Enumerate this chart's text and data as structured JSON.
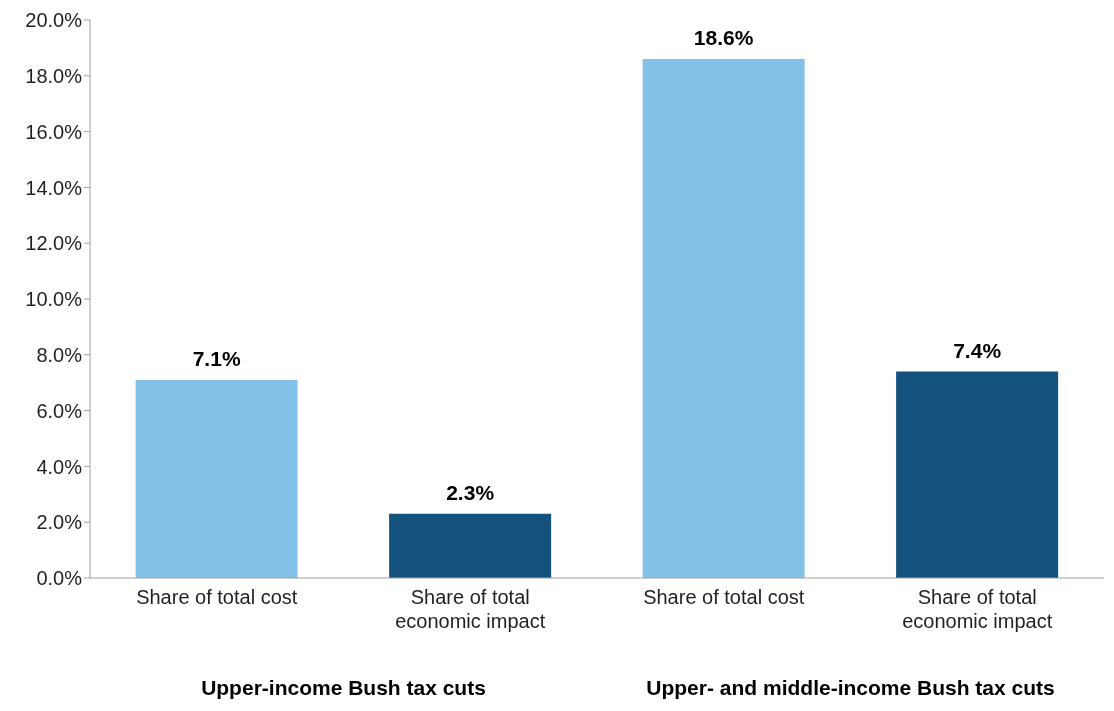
{
  "chart_data": {
    "type": "bar",
    "categories": [
      "Share of total cost",
      "Share of total economic impact",
      "Share of total cost",
      "Share of total economic impact"
    ],
    "values": [
      7.1,
      2.3,
      18.6,
      7.4
    ],
    "colors": [
      "#83c1e8",
      "#14517c",
      "#83c1e8",
      "#14517c"
    ],
    "value_labels": [
      "7.1%",
      "2.3%",
      "18.6%",
      "7.4%"
    ],
    "ylim": [
      0,
      20
    ],
    "yticks": [
      {
        "value": 0,
        "label": "0.0%"
      },
      {
        "value": 2,
        "label": "2.0%"
      },
      {
        "value": 4,
        "label": "4.0%"
      },
      {
        "value": 6,
        "label": "6.0%"
      },
      {
        "value": 8,
        "label": "8.0%"
      },
      {
        "value": 10,
        "label": "10.0%"
      },
      {
        "value": 12,
        "label": "12.0%"
      },
      {
        "value": 14,
        "label": "14.0%"
      },
      {
        "value": 16,
        "label": "16.0%"
      },
      {
        "value": 18,
        "label": "18.0%"
      },
      {
        "value": 20,
        "label": "20.0%"
      }
    ],
    "annotations": [
      "Upper-income Bush tax cuts",
      "Upper- and middle-income Bush tax cuts"
    ],
    "grid": false,
    "legend": false
  }
}
